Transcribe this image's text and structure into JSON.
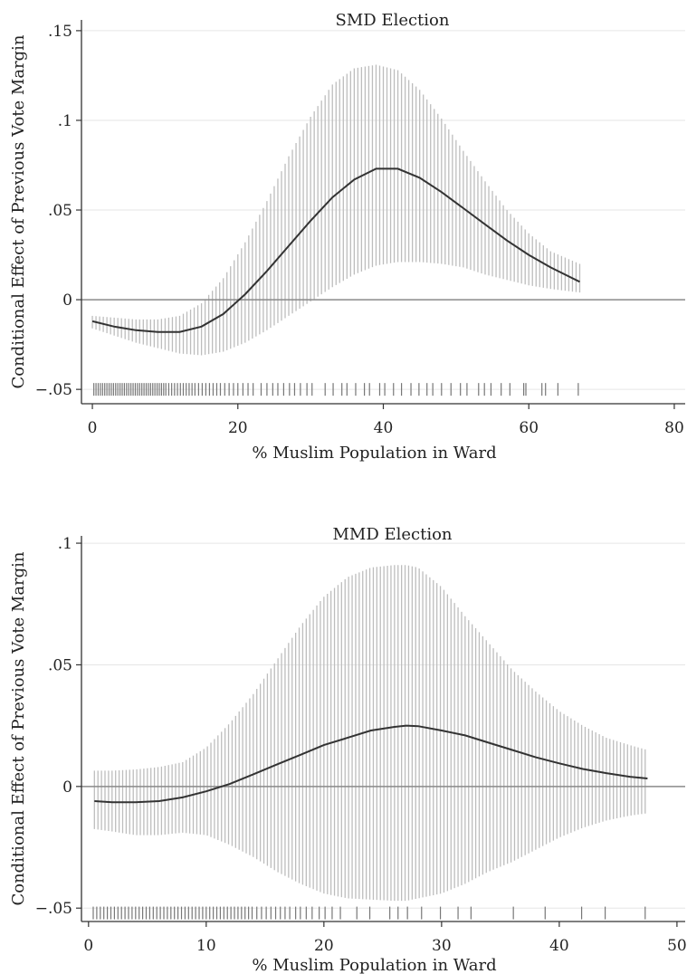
{
  "chart_data": [
    {
      "type": "line",
      "title": "SMD Election",
      "xlabel": "% Muslim Population in Ward",
      "ylabel": "Conditional Effect of Previous Vote Margin",
      "xlim": [
        -1.5,
        81.5
      ],
      "ylim": [
        -0.058,
        0.156
      ],
      "xticks": [
        0,
        20,
        40,
        60,
        80
      ],
      "xtick_labels": [
        "0",
        "20",
        "40",
        "60",
        "80"
      ],
      "yticks": [
        -0.05,
        0,
        0.05,
        0.1,
        0.15
      ],
      "ytick_labels": [
        "−.05",
        "0",
        ".05",
        ".1",
        ".15"
      ],
      "grid": true,
      "reference_line_y": 0,
      "series": [
        {
          "style": "line",
          "x": [
            0,
            3,
            6,
            9,
            12,
            15,
            18,
            21,
            24,
            27,
            30,
            33,
            36,
            39,
            42,
            45,
            48,
            51,
            54,
            57,
            60,
            63,
            67
          ],
          "y": [
            -0.012,
            -0.015,
            -0.017,
            -0.018,
            -0.018,
            -0.015,
            -0.008,
            0.003,
            0.016,
            0.03,
            0.044,
            0.057,
            0.067,
            0.073,
            0.073,
            0.068,
            0.06,
            0.051,
            0.042,
            0.033,
            0.025,
            0.018,
            0.01
          ]
        },
        {
          "style": "confidence-band",
          "x": [
            0,
            3,
            6,
            9,
            12,
            15,
            18,
            21,
            24,
            27,
            30,
            33,
            36,
            39,
            42,
            45,
            48,
            51,
            54,
            57,
            60,
            63,
            67
          ],
          "upper": [
            -0.009,
            -0.01,
            -0.011,
            -0.011,
            -0.009,
            -0.002,
            0.012,
            0.032,
            0.055,
            0.08,
            0.102,
            0.12,
            0.129,
            0.131,
            0.128,
            0.117,
            0.101,
            0.083,
            0.066,
            0.05,
            0.037,
            0.027,
            0.02
          ],
          "lower": [
            -0.016,
            -0.02,
            -0.024,
            -0.027,
            -0.03,
            -0.031,
            -0.029,
            -0.024,
            -0.017,
            -0.009,
            -0.001,
            0.007,
            0.014,
            0.019,
            0.021,
            0.021,
            0.02,
            0.018,
            0.014,
            0.011,
            0.008,
            0.006,
            0.004
          ]
        }
      ],
      "rug": {
        "y": -0.05,
        "x": [
          0.2,
          0.5,
          0.8,
          1.1,
          1.4,
          1.7,
          2.0,
          2.3,
          2.6,
          2.9,
          3.2,
          3.5,
          3.8,
          4.1,
          4.4,
          4.7,
          5.0,
          5.3,
          5.6,
          5.9,
          6.2,
          6.5,
          6.8,
          7.1,
          7.4,
          7.7,
          8.0,
          8.3,
          8.6,
          8.9,
          9.2,
          9.5,
          9.8,
          10.1,
          10.5,
          10.9,
          11.3,
          11.7,
          12.1,
          12.5,
          12.9,
          13.3,
          13.7,
          14.1,
          14.6,
          15.1,
          15.6,
          16.1,
          16.6,
          17.1,
          17.6,
          18.2,
          18.8,
          19.4,
          20.0,
          20.7,
          21.4,
          22.1,
          23.2,
          24.0,
          24.8,
          25.5,
          26.3,
          27.1,
          27.8,
          28.6,
          29.5,
          30.2,
          32.0,
          33.1,
          34.3,
          35.0,
          36.2,
          37.4,
          38.1,
          39.5,
          40.2,
          41.4,
          42.5,
          43.8,
          44.9,
          46.0,
          46.8,
          48.0,
          49.3,
          50.6,
          51.5,
          53.1,
          53.9,
          54.8,
          56.2,
          57.4,
          59.3,
          59.6,
          61.8,
          62.3,
          64.0,
          66.8
        ]
      }
    },
    {
      "type": "line",
      "title": "MMD Election",
      "xlabel": "% Muslim Population in Ward",
      "ylabel": "Conditional Effect of Previous Vote Margin",
      "xlim": [
        -0.6,
        50.7
      ],
      "ylim": [
        -0.0555,
        0.103
      ],
      "xticks": [
        0,
        10,
        20,
        30,
        40,
        50
      ],
      "xtick_labels": [
        "0",
        "10",
        "20",
        "30",
        "40",
        "50"
      ],
      "yticks": [
        -0.05,
        0,
        0.05,
        0.1
      ],
      "ytick_labels": [
        "−.05",
        "0",
        ".05",
        ".1"
      ],
      "grid": true,
      "reference_line_y": 0,
      "series": [
        {
          "style": "line",
          "x": [
            0.5,
            2,
            4,
            6,
            8,
            10,
            12,
            14,
            16,
            18,
            20,
            22,
            24,
            26,
            27,
            28,
            30,
            32,
            34,
            36,
            38,
            40,
            42,
            44,
            46,
            47.5
          ],
          "y": [
            -0.006,
            -0.0065,
            -0.0065,
            -0.006,
            -0.0045,
            -0.002,
            0.001,
            0.005,
            0.009,
            0.013,
            0.017,
            0.02,
            0.023,
            0.0245,
            0.025,
            0.0248,
            0.023,
            0.021,
            0.018,
            0.015,
            0.012,
            0.0095,
            0.0072,
            0.0055,
            0.004,
            0.0033
          ]
        },
        {
          "style": "confidence-band",
          "x": [
            0.5,
            2,
            4,
            6,
            8,
            10,
            12,
            14,
            16,
            18,
            20,
            22,
            24,
            26,
            27,
            28,
            30,
            32,
            34,
            36,
            38,
            40,
            42,
            44,
            46,
            47.5
          ],
          "upper": [
            0.0065,
            0.0065,
            0.007,
            0.008,
            0.01,
            0.016,
            0.026,
            0.038,
            0.052,
            0.066,
            0.078,
            0.086,
            0.09,
            0.091,
            0.091,
            0.09,
            0.082,
            0.07,
            0.059,
            0.048,
            0.039,
            0.031,
            0.025,
            0.02,
            0.017,
            0.015
          ],
          "lower": [
            -0.0175,
            -0.0185,
            -0.02,
            -0.02,
            -0.019,
            -0.02,
            -0.024,
            -0.029,
            -0.035,
            -0.04,
            -0.044,
            -0.046,
            -0.0465,
            -0.047,
            -0.047,
            -0.046,
            -0.044,
            -0.04,
            -0.035,
            -0.031,
            -0.026,
            -0.021,
            -0.017,
            -0.014,
            -0.012,
            -0.011
          ]
        }
      ],
      "rug": {
        "y": -0.052,
        "x": [
          0.4,
          0.7,
          1.0,
          1.3,
          1.6,
          1.9,
          2.2,
          2.5,
          2.8,
          3.1,
          3.4,
          3.7,
          4.0,
          4.3,
          4.6,
          4.9,
          5.2,
          5.5,
          5.8,
          6.1,
          6.4,
          6.7,
          7.0,
          7.3,
          7.6,
          7.9,
          8.2,
          8.5,
          8.8,
          9.1,
          9.4,
          9.7,
          10.0,
          10.3,
          10.6,
          10.9,
          11.2,
          11.5,
          11.8,
          12.1,
          12.4,
          12.7,
          13.0,
          13.3,
          13.6,
          13.9,
          14.3,
          14.7,
          15.1,
          15.5,
          15.9,
          16.3,
          16.7,
          17.1,
          17.6,
          18.0,
          18.5,
          19.0,
          19.6,
          20.1,
          20.7,
          21.4,
          22.8,
          23.9,
          25.6,
          26.3,
          27.1,
          28.3,
          29.9,
          31.4,
          32.5,
          36.1,
          38.8,
          41.9,
          43.9,
          47.3
        ]
      }
    }
  ]
}
